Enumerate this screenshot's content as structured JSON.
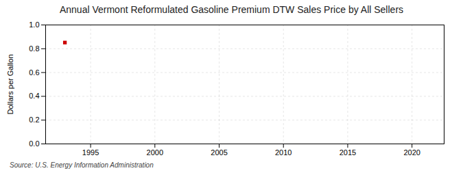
{
  "chart_data": {
    "type": "scatter",
    "title": "Annual Vermont Reformulated Gasoline Premium DTW Sales Price by All Sellers",
    "ylabel": "Dollars per Gallon",
    "source": "Source: U.S. Energy Information Administration",
    "x": [
      1993
    ],
    "values": [
      0.852
    ],
    "color": "#cc0000",
    "marker": "square",
    "xlim": [
      1991.5,
      2022.5
    ],
    "ylim": [
      0.0,
      1.0
    ],
    "xticks": [
      1995,
      2000,
      2005,
      2010,
      2015,
      2020
    ],
    "yticks": [
      {
        "value": 0,
        "label": "0.0"
      },
      0.2,
      0.4,
      0.6,
      0.8,
      {
        "value": 1,
        "label": "1.0"
      }
    ],
    "grid": true
  }
}
